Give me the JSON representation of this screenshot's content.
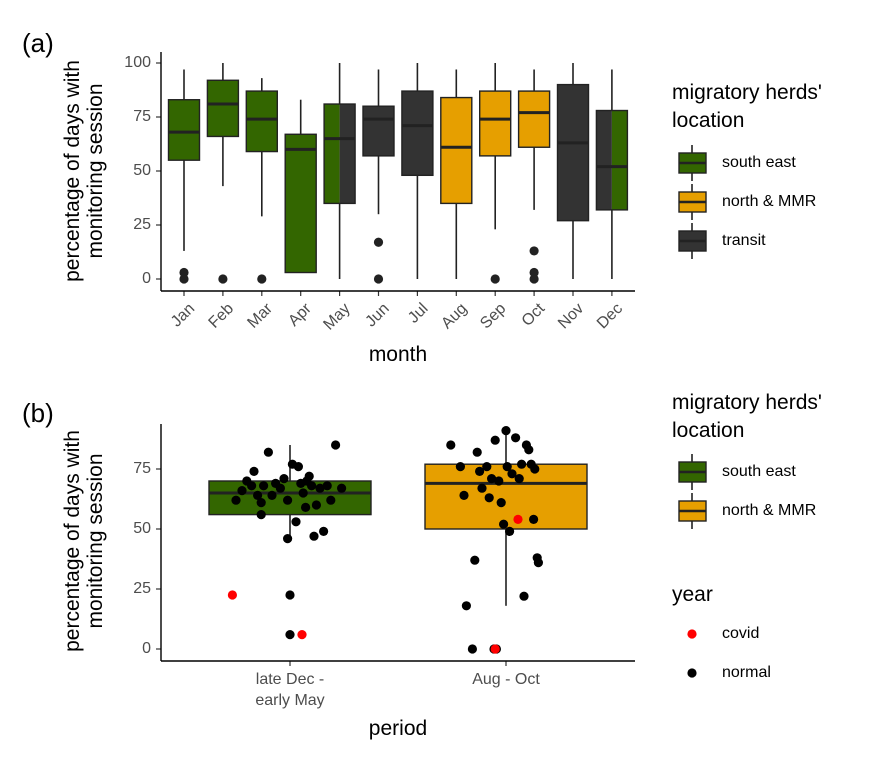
{
  "chart_data": [
    {
      "panel": "(a)",
      "type": "boxplot",
      "xlabel": "month",
      "ylabel_lines": [
        "percentage of days with",
        "monitoring session"
      ],
      "ylim": [
        0,
        100
      ],
      "yticks": [
        0,
        25,
        50,
        75,
        100
      ],
      "categories": [
        "Jan",
        "Feb",
        "Mar",
        "Apr",
        "May",
        "Jun",
        "Jul",
        "Aug",
        "Sep",
        "Oct",
        "Nov",
        "Dec"
      ],
      "boxes": [
        {
          "label": "Jan",
          "fill": [
            "south east"
          ],
          "min": 13,
          "q1": 55,
          "median": 68,
          "q3": 83,
          "max": 97,
          "outliers": [
            0,
            3
          ]
        },
        {
          "label": "Feb",
          "fill": [
            "south east"
          ],
          "min": 43,
          "q1": 66,
          "median": 81,
          "q3": 92,
          "max": 100,
          "outliers": [
            0
          ]
        },
        {
          "label": "Mar",
          "fill": [
            "south east"
          ],
          "min": 29,
          "q1": 59,
          "median": 74,
          "q3": 87,
          "max": 93,
          "outliers": [
            0
          ]
        },
        {
          "label": "Apr",
          "fill": [
            "south east"
          ],
          "min": 3,
          "q1": 3,
          "median": 60,
          "q3": 67,
          "max": 83,
          "outliers": []
        },
        {
          "label": "May",
          "fill": [
            "south east",
            "transit"
          ],
          "min": 0,
          "q1": 35,
          "median": 65,
          "q3": 81,
          "max": 100,
          "outliers": []
        },
        {
          "label": "Jun",
          "fill": [
            "transit"
          ],
          "min": 30,
          "q1": 57,
          "median": 74,
          "q3": 80,
          "max": 97,
          "outliers": [
            0,
            17
          ]
        },
        {
          "label": "Jul",
          "fill": [
            "transit"
          ],
          "min": 0,
          "q1": 48,
          "median": 71,
          "q3": 87,
          "max": 100,
          "outliers": []
        },
        {
          "label": "Aug",
          "fill": [
            "north & MMR"
          ],
          "min": 0,
          "q1": 35,
          "median": 61,
          "q3": 84,
          "max": 97,
          "outliers": []
        },
        {
          "label": "Sep",
          "fill": [
            "north & MMR"
          ],
          "min": 23,
          "q1": 57,
          "median": 74,
          "q3": 87,
          "max": 100,
          "outliers": [
            0
          ]
        },
        {
          "label": "Oct",
          "fill": [
            "north & MMR"
          ],
          "min": 32,
          "q1": 61,
          "median": 77,
          "q3": 87,
          "max": 97,
          "outliers": [
            0,
            3,
            13
          ]
        },
        {
          "label": "Nov",
          "fill": [
            "transit"
          ],
          "min": 0,
          "q1": 27,
          "median": 63,
          "q3": 90,
          "max": 100,
          "outliers": []
        },
        {
          "label": "Dec",
          "fill": [
            "transit",
            "south east"
          ],
          "min": 0,
          "q1": 32,
          "median": 52,
          "q3": 78,
          "max": 97,
          "outliers": []
        }
      ],
      "legend": {
        "title_lines": [
          "migratory herds'",
          "location"
        ],
        "entries": [
          {
            "label": "south east",
            "color": "#336600"
          },
          {
            "label": "north & MMR",
            "color": "#E69F00"
          },
          {
            "label": "transit",
            "color": "#333333"
          }
        ]
      }
    },
    {
      "panel": "(b)",
      "type": "boxplot+jitter",
      "xlabel": "period",
      "ylabel_lines": [
        "percentage of days with",
        "monitoring session"
      ],
      "ylim": [
        0,
        92
      ],
      "yticks": [
        0,
        25,
        50,
        75
      ],
      "categories": [
        [
          "late Dec -",
          "early May"
        ],
        [
          "Aug - Oct"
        ]
      ],
      "boxes": [
        {
          "label": "late Dec - early May",
          "location": "south east",
          "min": 45,
          "q1": 56,
          "median": 65,
          "q3": 70,
          "max": 85
        },
        {
          "label": "Aug - Oct",
          "location": "north & MMR",
          "min": 18,
          "q1": 50,
          "median": 69,
          "q3": 77,
          "max": 91
        }
      ],
      "points": [
        {
          "cat": 0,
          "dx": -0.45,
          "y": 62,
          "year": "normal"
        },
        {
          "cat": 0,
          "dx": -0.4,
          "y": 66,
          "year": "normal"
        },
        {
          "cat": 0,
          "dx": -0.36,
          "y": 70,
          "year": "normal"
        },
        {
          "cat": 0,
          "dx": -0.32,
          "y": 68,
          "year": "normal"
        },
        {
          "cat": 0,
          "dx": -0.3,
          "y": 74,
          "year": "normal"
        },
        {
          "cat": 0,
          "dx": -0.27,
          "y": 64,
          "year": "normal"
        },
        {
          "cat": 0,
          "dx": -0.24,
          "y": 61,
          "year": "normal"
        },
        {
          "cat": 0,
          "dx": -0.22,
          "y": 68,
          "year": "normal"
        },
        {
          "cat": 0,
          "dx": -0.18,
          "y": 82,
          "year": "normal"
        },
        {
          "cat": 0,
          "dx": -0.15,
          "y": 64,
          "year": "normal"
        },
        {
          "cat": 0,
          "dx": -0.12,
          "y": 69,
          "year": "normal"
        },
        {
          "cat": 0,
          "dx": -0.08,
          "y": 67,
          "year": "normal"
        },
        {
          "cat": 0,
          "dx": -0.05,
          "y": 71,
          "year": "normal"
        },
        {
          "cat": 0,
          "dx": -0.02,
          "y": 62,
          "year": "normal"
        },
        {
          "cat": 0,
          "dx": 0.02,
          "y": 77,
          "year": "normal"
        },
        {
          "cat": 0,
          "dx": 0.05,
          "y": 53,
          "year": "normal"
        },
        {
          "cat": 0,
          "dx": 0.07,
          "y": 76,
          "year": "normal"
        },
        {
          "cat": 0,
          "dx": 0.09,
          "y": 69,
          "year": "normal"
        },
        {
          "cat": 0,
          "dx": 0.11,
          "y": 65,
          "year": "normal"
        },
        {
          "cat": 0,
          "dx": 0.13,
          "y": 59,
          "year": "normal"
        },
        {
          "cat": 0,
          "dx": 0.14,
          "y": 70,
          "year": "normal"
        },
        {
          "cat": 0,
          "dx": 0.16,
          "y": 72,
          "year": "normal"
        },
        {
          "cat": 0,
          "dx": 0.18,
          "y": 68,
          "year": "normal"
        },
        {
          "cat": 0,
          "dx": 0.2,
          "y": 47,
          "year": "normal"
        },
        {
          "cat": 0,
          "dx": -0.02,
          "y": 46,
          "year": "normal"
        },
        {
          "cat": 0,
          "dx": 0.22,
          "y": 60,
          "year": "normal"
        },
        {
          "cat": 0,
          "dx": 0.25,
          "y": 67,
          "year": "normal"
        },
        {
          "cat": 0,
          "dx": 0.28,
          "y": 49,
          "year": "normal"
        },
        {
          "cat": 0,
          "dx": 0.31,
          "y": 68,
          "year": "normal"
        },
        {
          "cat": 0,
          "dx": 0.34,
          "y": 62,
          "year": "normal"
        },
        {
          "cat": 0,
          "dx": 0.38,
          "y": 85,
          "year": "normal"
        },
        {
          "cat": 0,
          "dx": 0.43,
          "y": 67,
          "year": "normal"
        },
        {
          "cat": 0,
          "dx": -0.24,
          "y": 56,
          "year": "normal"
        },
        {
          "cat": 0,
          "dx": 0.0,
          "y": 22.5,
          "year": "normal"
        },
        {
          "cat": 0,
          "dx": 0.0,
          "y": 6,
          "year": "normal"
        },
        {
          "cat": 0,
          "dx": -0.48,
          "y": 22.5,
          "year": "covid"
        },
        {
          "cat": 0,
          "dx": 0.1,
          "y": 6,
          "year": "covid"
        },
        {
          "cat": 1,
          "dx": -0.46,
          "y": 85,
          "year": "normal"
        },
        {
          "cat": 1,
          "dx": -0.38,
          "y": 76,
          "year": "normal"
        },
        {
          "cat": 1,
          "dx": -0.35,
          "y": 64,
          "year": "normal"
        },
        {
          "cat": 1,
          "dx": -0.33,
          "y": 18,
          "year": "normal"
        },
        {
          "cat": 1,
          "dx": -0.28,
          "y": 0,
          "year": "normal"
        },
        {
          "cat": 1,
          "dx": -0.26,
          "y": 37,
          "year": "normal"
        },
        {
          "cat": 1,
          "dx": -0.24,
          "y": 82,
          "year": "normal"
        },
        {
          "cat": 1,
          "dx": -0.22,
          "y": 74,
          "year": "normal"
        },
        {
          "cat": 1,
          "dx": -0.2,
          "y": 67,
          "year": "normal"
        },
        {
          "cat": 1,
          "dx": -0.16,
          "y": 76,
          "year": "normal"
        },
        {
          "cat": 1,
          "dx": -0.14,
          "y": 63,
          "year": "normal"
        },
        {
          "cat": 1,
          "dx": -0.12,
          "y": 71,
          "year": "normal"
        },
        {
          "cat": 1,
          "dx": -0.09,
          "y": 87,
          "year": "normal"
        },
        {
          "cat": 1,
          "dx": -0.06,
          "y": 70,
          "year": "normal"
        },
        {
          "cat": 1,
          "dx": -0.04,
          "y": 61,
          "year": "normal"
        },
        {
          "cat": 1,
          "dx": -0.02,
          "y": 52,
          "year": "normal"
        },
        {
          "cat": 1,
          "dx": 0.0,
          "y": 91,
          "year": "normal"
        },
        {
          "cat": 1,
          "dx": 0.01,
          "y": 76,
          "year": "normal"
        },
        {
          "cat": 1,
          "dx": 0.03,
          "y": 49,
          "year": "normal"
        },
        {
          "cat": 1,
          "dx": 0.05,
          "y": 73,
          "year": "normal"
        },
        {
          "cat": 1,
          "dx": 0.08,
          "y": 88,
          "year": "normal"
        },
        {
          "cat": 1,
          "dx": 0.11,
          "y": 71,
          "year": "normal"
        },
        {
          "cat": 1,
          "dx": 0.13,
          "y": 77,
          "year": "normal"
        },
        {
          "cat": 1,
          "dx": 0.15,
          "y": 22,
          "year": "normal"
        },
        {
          "cat": 1,
          "dx": 0.17,
          "y": 85,
          "year": "normal"
        },
        {
          "cat": 1,
          "dx": 0.19,
          "y": 83,
          "year": "normal"
        },
        {
          "cat": 1,
          "dx": 0.21,
          "y": 77,
          "year": "normal"
        },
        {
          "cat": 1,
          "dx": 0.23,
          "y": 54,
          "year": "normal"
        },
        {
          "cat": 1,
          "dx": 0.26,
          "y": 38,
          "year": "normal"
        },
        {
          "cat": 1,
          "dx": 0.27,
          "y": 36,
          "year": "normal"
        },
        {
          "cat": 1,
          "dx": 0.24,
          "y": 75,
          "year": "normal"
        },
        {
          "cat": 1,
          "dx": -0.1,
          "y": 0,
          "year": "normal"
        },
        {
          "cat": 1,
          "dx": -0.08,
          "y": 0,
          "year": "normal"
        },
        {
          "cat": 1,
          "dx": -0.09,
          "y": 0,
          "year": "covid"
        },
        {
          "cat": 1,
          "dx": 0.1,
          "y": 54,
          "year": "covid"
        }
      ],
      "legend_location": {
        "title_lines": [
          "migratory herds'",
          "location"
        ],
        "entries": [
          {
            "label": "south east",
            "color": "#336600"
          },
          {
            "label": "north & MMR",
            "color": "#E69F00"
          }
        ]
      },
      "legend_year": {
        "title": "year",
        "entries": [
          {
            "label": "covid",
            "color": "#FF0000"
          },
          {
            "label": "normal",
            "color": "#000000"
          }
        ]
      }
    }
  ]
}
